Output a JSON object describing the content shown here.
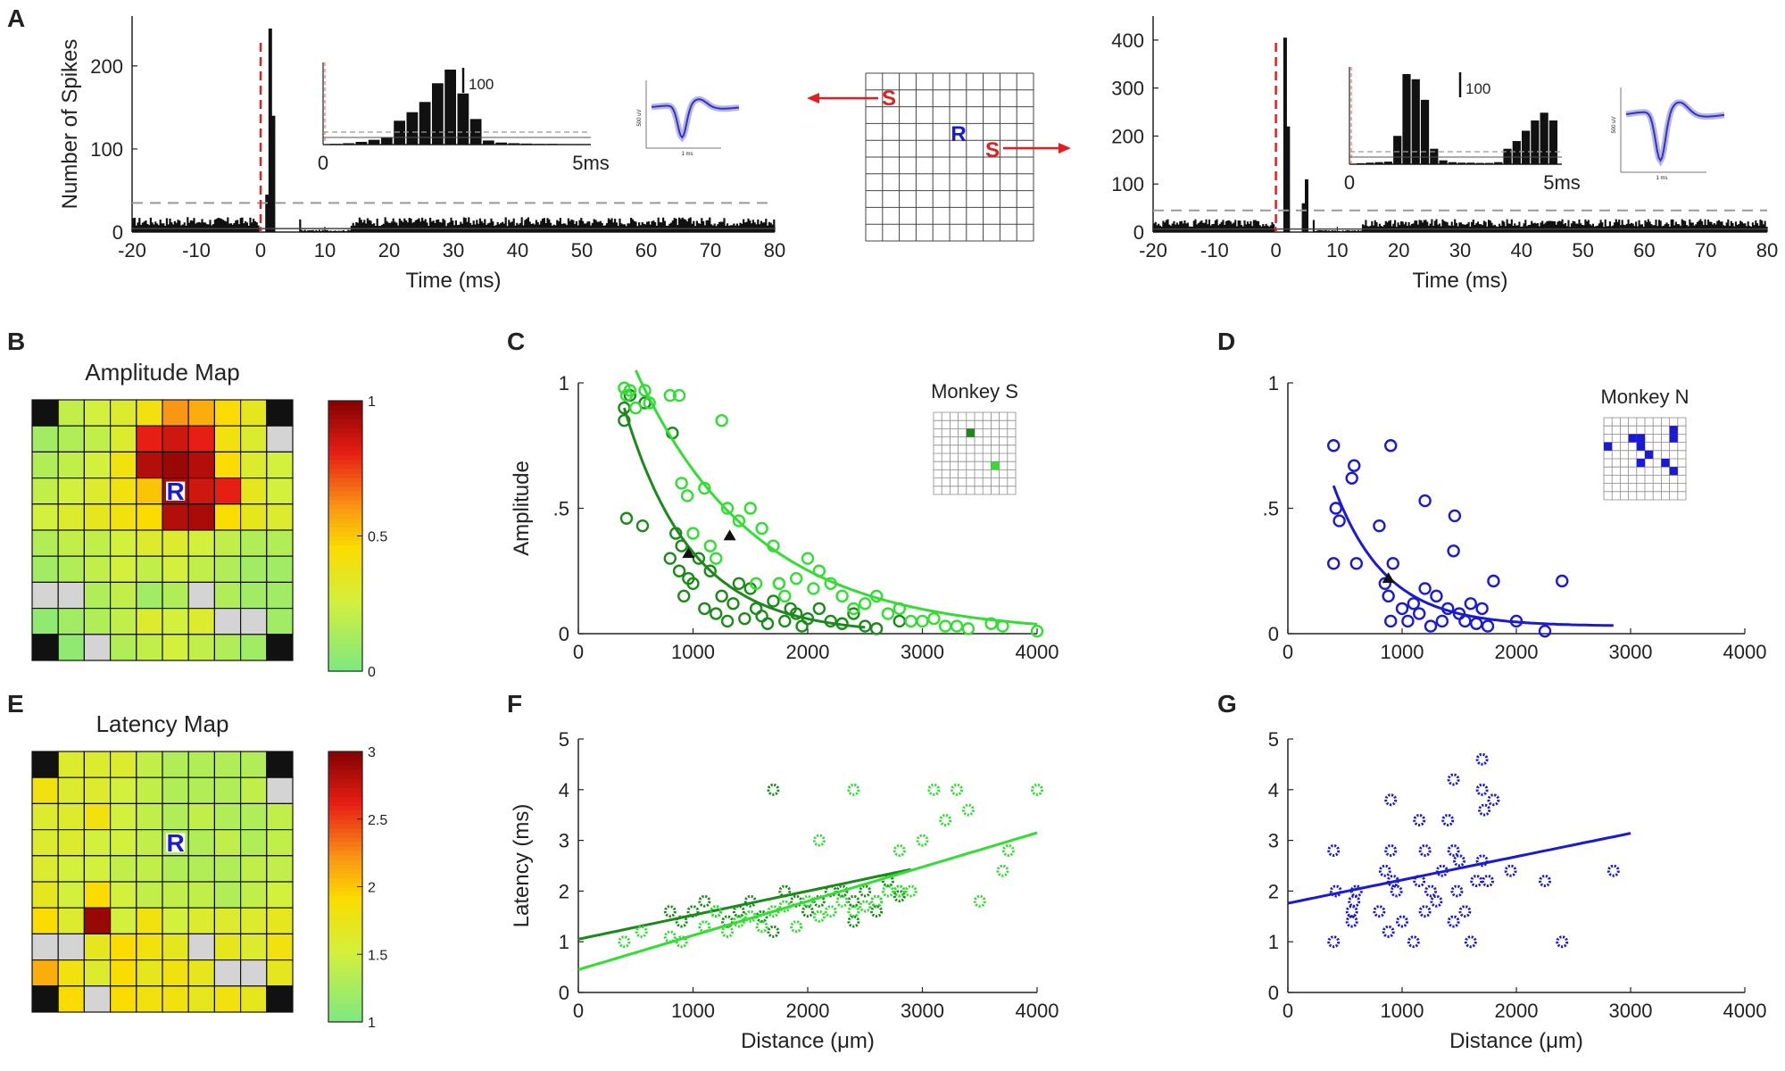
{
  "panel_labels": [
    "A",
    "B",
    "C",
    "D",
    "E",
    "F",
    "G"
  ],
  "chart_data": [
    {
      "id": "A-left",
      "type": "bar",
      "title": "",
      "xlabel": "Time (ms)",
      "ylabel": "Number of Spikes",
      "xlim": [
        -20,
        80
      ],
      "ylim": [
        0,
        260
      ],
      "xticks": [
        "-20",
        "-10",
        "0",
        "10",
        "20",
        "30",
        "40",
        "50",
        "60",
        "70",
        "80"
      ],
      "yticks": [
        "0",
        "100",
        "200"
      ],
      "baseline": 12,
      "threshold": 35,
      "peaks": [
        {
          "x": 1.5,
          "y": 245
        },
        {
          "x": 2.0,
          "y": 140
        },
        {
          "x": 1.0,
          "y": 45
        }
      ],
      "stim_time": 0,
      "inset": {
        "xlabel_start": "0",
        "xlabel_end": "5ms",
        "scale_label": "100",
        "values": [
          2,
          4,
          8,
          14,
          22,
          70,
          95,
          125,
          180,
          220,
          150,
          75,
          12,
          6,
          4,
          3,
          2,
          2,
          1,
          1
        ]
      },
      "waveform": {
        "scale_y": "500 uV",
        "scale_x": "1 ms"
      }
    },
    {
      "id": "A-right",
      "type": "bar",
      "title": "",
      "xlabel": "Time (ms)",
      "ylabel": "",
      "xlim": [
        -20,
        80
      ],
      "ylim": [
        0,
        450
      ],
      "xticks": [
        "-20",
        "-10",
        "0",
        "10",
        "20",
        "30",
        "40",
        "50",
        "60",
        "70",
        "80"
      ],
      "yticks": [
        "0",
        "100",
        "200",
        "300",
        "400"
      ],
      "baseline": 18,
      "threshold": 45,
      "peaks": [
        {
          "x": 1.5,
          "y": 405
        },
        {
          "x": 2.0,
          "y": 220
        },
        {
          "x": 5.0,
          "y": 110
        },
        {
          "x": 4.5,
          "y": 60
        }
      ],
      "stim_time": 0,
      "inset": {
        "xlabel_start": "0",
        "xlabel_end": "5ms",
        "scale_label": "100",
        "values": [
          4,
          6,
          8,
          10,
          110,
          350,
          330,
          250,
          60,
          15,
          8,
          6,
          6,
          5,
          5,
          8,
          60,
          90,
          130,
          170,
          200,
          170
        ]
      },
      "waveform": {
        "scale_y": "500 uV",
        "scale_x": "1 ms"
      }
    },
    {
      "id": "array-diagram",
      "type": "diagram",
      "stim_label": "S",
      "record_label": "R"
    },
    {
      "id": "B",
      "type": "heatmap",
      "title": "Amplitude Map",
      "colorbar_ticks": [
        "0",
        "0.5",
        "1"
      ],
      "record_label": "R",
      "values": [
        [
          -1,
          0.2,
          0.25,
          0.3,
          0.4,
          0.6,
          0.55,
          0.45,
          0.35,
          -1
        ],
        [
          0.1,
          0.15,
          0.2,
          0.3,
          0.8,
          0.85,
          0.8,
          0.4,
          0.3,
          -2
        ],
        [
          0.15,
          0.2,
          0.25,
          0.4,
          0.9,
          0.95,
          0.9,
          0.45,
          0.3,
          0.25
        ],
        [
          0.2,
          0.25,
          0.3,
          0.4,
          0.5,
          -3,
          0.85,
          0.8,
          0.35,
          0.25
        ],
        [
          0.25,
          0.3,
          0.35,
          0.4,
          0.45,
          0.9,
          0.92,
          0.45,
          0.35,
          0.3
        ],
        [
          0.15,
          0.2,
          0.2,
          0.25,
          0.3,
          0.3,
          0.25,
          0.2,
          0.15,
          0.15
        ],
        [
          0.1,
          0.15,
          0.2,
          0.25,
          0.2,
          0.25,
          0.2,
          0.15,
          0.1,
          0.1
        ],
        [
          -2,
          -2,
          0.15,
          0.2,
          0.1,
          0.15,
          -2,
          0.15,
          0.1,
          0.1
        ],
        [
          0.05,
          0.1,
          0.15,
          0.2,
          0.3,
          0.25,
          0.3,
          -2,
          -2,
          0.1
        ],
        [
          -1,
          0.05,
          -2,
          0.15,
          0.2,
          0.25,
          0.2,
          0.15,
          0.1,
          -1
        ]
      ]
    },
    {
      "id": "E",
      "type": "heatmap",
      "title": "Latency Map",
      "colorbar_ticks": [
        "1",
        "1.5",
        "2",
        "2.5",
        "3"
      ],
      "record_label": "R",
      "values": [
        [
          -1,
          1.6,
          1.6,
          1.6,
          1.4,
          1.3,
          1.3,
          1.3,
          1.3,
          -1
        ],
        [
          1.8,
          1.6,
          1.6,
          1.5,
          1.4,
          1.3,
          1.3,
          1.3,
          1.4,
          -2
        ],
        [
          1.6,
          1.6,
          1.8,
          1.5,
          1.4,
          1.3,
          1.4,
          1.3,
          1.3,
          1.4
        ],
        [
          1.6,
          1.6,
          1.5,
          1.5,
          1.4,
          -3,
          1.3,
          1.4,
          1.3,
          1.4
        ],
        [
          1.6,
          1.5,
          1.5,
          1.4,
          1.4,
          1.3,
          1.3,
          1.3,
          1.4,
          1.4
        ],
        [
          1.7,
          1.5,
          1.9,
          1.5,
          1.4,
          1.4,
          1.4,
          1.3,
          1.4,
          1.5
        ],
        [
          1.9,
          1.6,
          2.9,
          1.5,
          1.8,
          1.5,
          1.6,
          1.6,
          1.6,
          1.7
        ],
        [
          -2,
          -2,
          1.7,
          1.9,
          1.8,
          1.7,
          -2,
          1.7,
          1.6,
          1.8
        ],
        [
          2.1,
          1.8,
          1.6,
          1.9,
          1.7,
          1.8,
          1.7,
          -2,
          -2,
          1.7
        ],
        [
          -1,
          1.9,
          -2,
          1.9,
          1.8,
          1.8,
          1.7,
          1.8,
          1.7,
          -1
        ]
      ]
    },
    {
      "id": "C",
      "type": "scatter",
      "xlabel": "",
      "ylabel": "Amplitude",
      "xlim": [
        0,
        4000
      ],
      "ylim": [
        0,
        1
      ],
      "xticks": [
        "0",
        "1000",
        "2000",
        "3000",
        "4000"
      ],
      "yticks": [
        "0",
        ".5",
        "1"
      ],
      "legend_label": "Monkey S",
      "series": [
        {
          "name": "dark green",
          "color": "#1b8a1b",
          "x": [
            400,
            400,
            420,
            450,
            560,
            580,
            800,
            820,
            850,
            880,
            900,
            920,
            960,
            1000,
            1050,
            1100,
            1150,
            1200,
            1250,
            1300,
            1350,
            1400,
            1450,
            1500,
            1550,
            1600,
            1650,
            1700,
            1750,
            1800,
            1850,
            1900,
            1950,
            2000,
            2100,
            2200,
            2300,
            2400,
            2500,
            2600,
            2800
          ],
          "y": [
            0.85,
            0.9,
            0.46,
            0.95,
            0.43,
            0.92,
            0.3,
            0.8,
            0.4,
            0.25,
            0.35,
            0.15,
            0.22,
            0.2,
            0.3,
            0.1,
            0.25,
            0.08,
            0.15,
            0.05,
            0.12,
            0.2,
            0.06,
            0.18,
            0.1,
            0.07,
            0.04,
            0.13,
            0.2,
            0.05,
            0.1,
            0.08,
            0.03,
            0.06,
            0.1,
            0.05,
            0.04,
            0.08,
            0.03,
            0.02,
            0.05
          ],
          "fit": {
            "a": 0.9,
            "k": 0.0017,
            "from": 400,
            "to": 2500
          }
        },
        {
          "name": "light green",
          "color": "#33dd33",
          "x": [
            400,
            420,
            450,
            500,
            580,
            620,
            800,
            880,
            900,
            950,
            1000,
            1100,
            1150,
            1200,
            1250,
            1300,
            1400,
            1500,
            1550,
            1600,
            1700,
            1750,
            1800,
            1900,
            2000,
            2050,
            2100,
            2200,
            2300,
            2400,
            2500,
            2600,
            2700,
            2800,
            2900,
            3000,
            3100,
            3200,
            3300,
            3400,
            3600,
            3700,
            4000
          ],
          "y": [
            0.98,
            0.95,
            0.97,
            0.9,
            0.97,
            0.92,
            0.95,
            0.95,
            0.6,
            0.55,
            0.4,
            0.58,
            0.35,
            0.3,
            0.85,
            0.5,
            0.45,
            0.5,
            0.2,
            0.42,
            0.35,
            0.2,
            0.15,
            0.22,
            0.3,
            0.18,
            0.25,
            0.2,
            0.15,
            0.1,
            0.12,
            0.15,
            0.08,
            0.1,
            0.05,
            0.05,
            0.06,
            0.03,
            0.03,
            0.02,
            0.04,
            0.03,
            0.01
          ],
          "fit": {
            "a": 1.05,
            "k": 0.00095,
            "from": 500,
            "to": 4000
          }
        }
      ],
      "markers": [
        {
          "x": 960,
          "y": 0.32
        },
        {
          "x": 1320,
          "y": 0.39
        }
      ]
    },
    {
      "id": "D",
      "type": "scatter",
      "xlabel": "",
      "ylabel": "",
      "xlim": [
        0,
        4000
      ],
      "ylim": [
        0,
        1
      ],
      "xticks": [
        "0",
        "1000",
        "2000",
        "3000",
        "4000"
      ],
      "yticks": [
        "0",
        ".5",
        "1"
      ],
      "legend_label": "Monkey N",
      "series": [
        {
          "name": "blue",
          "color": "#1a1ad6",
          "x": [
            400,
            400,
            420,
            450,
            560,
            580,
            600,
            800,
            850,
            880,
            900,
            920,
            1000,
            1050,
            1100,
            1150,
            1200,
            1250,
            1300,
            1350,
            1400,
            1450,
            1500,
            1550,
            1600,
            1650,
            1700,
            1750,
            1800,
            2000,
            2250,
            2400,
            900,
            1200,
            1460
          ],
          "y": [
            0.75,
            0.28,
            0.5,
            0.45,
            0.62,
            0.67,
            0.28,
            0.43,
            0.2,
            0.15,
            0.75,
            0.28,
            0.1,
            0.05,
            0.12,
            0.08,
            0.18,
            0.03,
            0.15,
            0.05,
            0.1,
            0.33,
            0.08,
            0.05,
            0.12,
            0.04,
            0.1,
            0.03,
            0.21,
            0.05,
            0.01,
            0.21,
            0.05,
            0.53,
            0.47
          ],
          "fit": {
            "a": 0.56,
            "k": 0.0022,
            "from": 400,
            "to": 2850,
            "c": 0.03
          }
        }
      ],
      "markers": [
        {
          "x": 880,
          "y": 0.22
        }
      ]
    },
    {
      "id": "F",
      "type": "scatter",
      "xlabel": "Distance (μm)",
      "ylabel": "Latency (ms)",
      "xlim": [
        0,
        4000
      ],
      "ylim": [
        0,
        5
      ],
      "xticks": [
        "0",
        "1000",
        "2000",
        "3000",
        "4000"
      ],
      "yticks": [
        "0",
        "1",
        "2",
        "3",
        "4",
        "5"
      ],
      "series": [
        {
          "name": "dark green",
          "color": "#1b8a1b",
          "x": [
            800,
            900,
            1000,
            1100,
            1200,
            1300,
            1400,
            1500,
            1600,
            1700,
            1800,
            1900,
            2000,
            2100,
            2200,
            2300,
            2400,
            2500,
            2600,
            2700,
            2800,
            1700,
            2800,
            2600,
            2400
          ],
          "y": [
            1.6,
            1.4,
            1.6,
            1.8,
            1.6,
            1.4,
            1.6,
            1.8,
            1.5,
            1.2,
            2.0,
            1.8,
            1.6,
            1.8,
            2.0,
            2.0,
            1.8,
            2.0,
            1.8,
            2.2,
            1.9,
            4.0,
            2.0,
            1.6,
            1.4
          ],
          "fit": {
            "m": 0.000475,
            "b": 1.05,
            "from": 0,
            "to": 2900
          }
        },
        {
          "name": "light green",
          "color": "#33dd33",
          "x": [
            400,
            550,
            800,
            900,
            1100,
            1200,
            1300,
            1400,
            1500,
            1600,
            1700,
            1800,
            1900,
            2000,
            2100,
            2200,
            2300,
            2400,
            2500,
            2600,
            2700,
            2800,
            2900,
            3000,
            3100,
            3200,
            3300,
            3400,
            3500,
            3700,
            3750,
            4000,
            2400,
            2100,
            2800
          ],
          "y": [
            1.0,
            1.2,
            1.1,
            1.0,
            1.3,
            1.6,
            1.2,
            1.4,
            1.5,
            1.3,
            1.6,
            1.7,
            1.3,
            1.8,
            3.0,
            1.6,
            1.8,
            4.0,
            1.7,
            1.8,
            2.0,
            2.8,
            2.0,
            3.0,
            4.0,
            3.4,
            4.0,
            3.6,
            1.8,
            2.4,
            2.8,
            4.0,
            1.6,
            1.5,
            2.0
          ],
          "fit": {
            "m": 0.000675,
            "b": 0.45,
            "from": 0,
            "to": 4000
          }
        }
      ]
    },
    {
      "id": "G",
      "type": "scatter",
      "xlabel": "Distance (μm)",
      "ylabel": "",
      "xlim": [
        0,
        4000
      ],
      "ylim": [
        0,
        5
      ],
      "xticks": [
        "0",
        "1000",
        "2000",
        "3000",
        "4000"
      ],
      "yticks": [
        "0",
        "1",
        "2",
        "3",
        "4",
        "5"
      ],
      "series": [
        {
          "name": "blue",
          "color": "#1a1ad6",
          "x": [
            400,
            400,
            420,
            560,
            580,
            600,
            800,
            850,
            880,
            900,
            920,
            950,
            1000,
            1100,
            1150,
            1200,
            1250,
            1300,
            1350,
            1400,
            1450,
            1480,
            1500,
            1550,
            1600,
            1650,
            1700,
            1720,
            1750,
            1800,
            1950,
            2250,
            2400,
            2850,
            1150,
            1450,
            1700,
            900,
            1200,
            1450,
            1700,
            560
          ],
          "y": [
            2.8,
            1.0,
            2.0,
            1.4,
            1.8,
            2.0,
            1.6,
            2.4,
            1.2,
            3.8,
            2.2,
            2.0,
            1.4,
            1.0,
            2.2,
            2.8,
            2.0,
            1.8,
            2.4,
            3.4,
            4.2,
            2.0,
            2.6,
            1.6,
            1.0,
            2.2,
            4.6,
            3.6,
            2.2,
            3.8,
            2.4,
            2.2,
            1.0,
            2.4,
            3.4,
            2.8,
            4.0,
            2.8,
            1.6,
            1.4,
            2.6,
            1.6
          ],
          "fit": {
            "m": 0.00046,
            "b": 1.76,
            "from": 0,
            "to": 3000
          }
        }
      ]
    }
  ]
}
